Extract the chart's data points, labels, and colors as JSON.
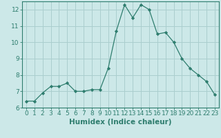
{
  "x": [
    0,
    1,
    2,
    3,
    4,
    5,
    6,
    7,
    8,
    9,
    10,
    11,
    12,
    13,
    14,
    15,
    16,
    17,
    18,
    19,
    20,
    21,
    22,
    23
  ],
  "y": [
    6.4,
    6.4,
    6.9,
    7.3,
    7.3,
    7.5,
    7.0,
    7.0,
    7.1,
    7.1,
    8.4,
    10.7,
    12.3,
    11.5,
    12.3,
    12.0,
    10.5,
    10.6,
    10.0,
    9.0,
    8.4,
    8.0,
    7.6,
    6.8
  ],
  "line_color": "#2e7d6e",
  "marker": "D",
  "bg_color": "#cce8e8",
  "grid_color": "#aacece",
  "xlabel": "Humidex (Indice chaleur)",
  "ylim": [
    6,
    12.5
  ],
  "xlim_min": -0.5,
  "xlim_max": 23.5,
  "yticks": [
    6,
    7,
    8,
    9,
    10,
    11,
    12
  ],
  "xticks": [
    0,
    1,
    2,
    3,
    4,
    5,
    6,
    7,
    8,
    9,
    10,
    11,
    12,
    13,
    14,
    15,
    16,
    17,
    18,
    19,
    20,
    21,
    22,
    23
  ],
  "tick_fontsize": 6.5,
  "xlabel_fontsize": 7.5
}
